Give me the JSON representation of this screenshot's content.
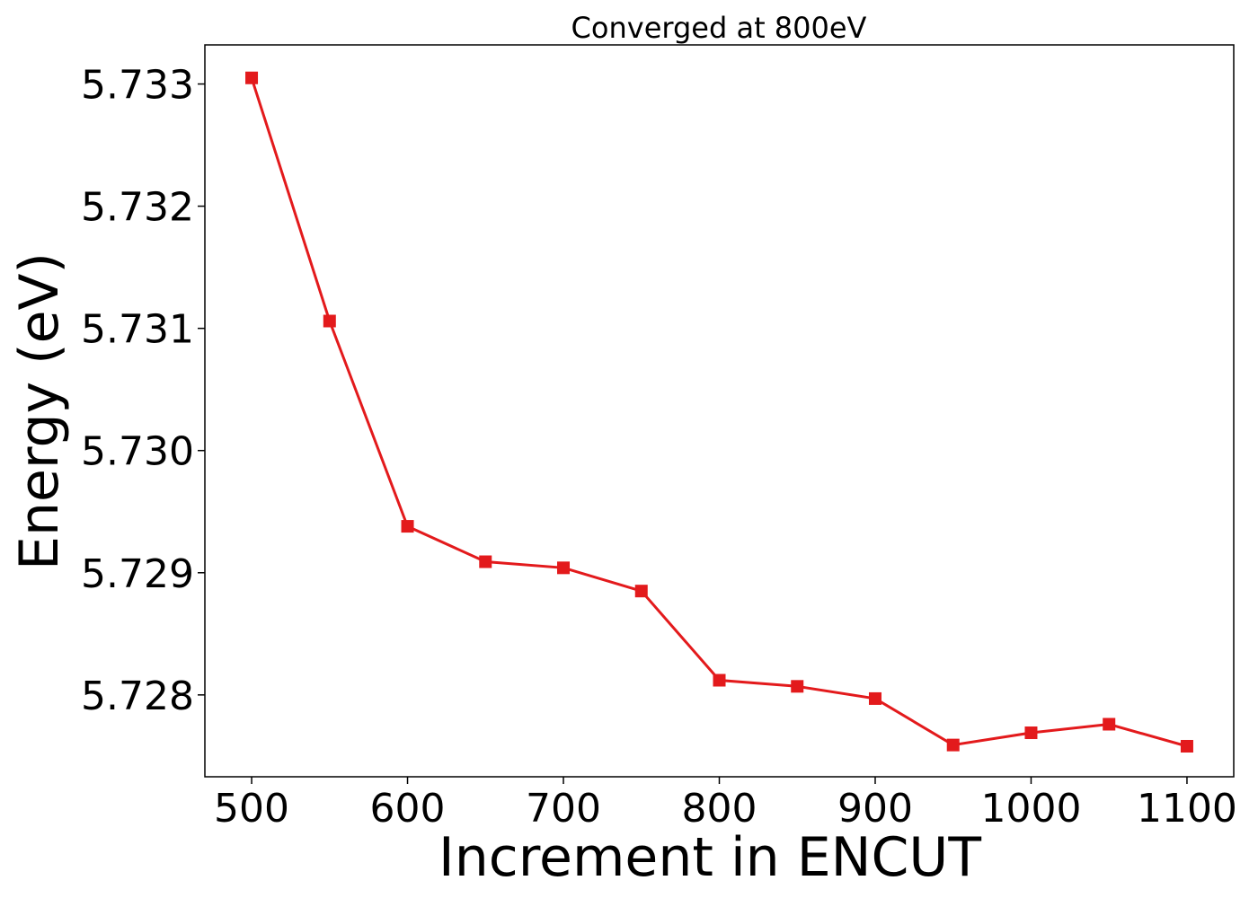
{
  "chart_data": {
    "type": "line",
    "title": "Converged at 800eV",
    "xlabel": "Increment in ENCUT",
    "ylabel": "Energy (eV)",
    "xlim": [
      470,
      1130
    ],
    "ylim": [
      5.72733,
      5.73332
    ],
    "xticks": [
      500,
      600,
      700,
      800,
      900,
      1000,
      1100
    ],
    "xtick_labels": [
      "500",
      "600",
      "700",
      "800",
      "900",
      "1000",
      "1100"
    ],
    "yticks": [
      5.728,
      5.729,
      5.73,
      5.731,
      5.732,
      5.733
    ],
    "ytick_labels": [
      "5.728",
      "5.729",
      "5.730",
      "5.731",
      "5.732",
      "5.733"
    ],
    "grid": false,
    "legend": "none",
    "series": [
      {
        "color": "#e31a1c",
        "marker": "square",
        "x": [
          500,
          550,
          600,
          650,
          700,
          750,
          800,
          850,
          900,
          950,
          1000,
          1050,
          1100
        ],
        "y": [
          5.73305,
          5.73106,
          5.72938,
          5.72909,
          5.72904,
          5.72885,
          5.72812,
          5.72807,
          5.72797,
          5.72759,
          5.72769,
          5.72776,
          5.72758
        ]
      }
    ]
  }
}
